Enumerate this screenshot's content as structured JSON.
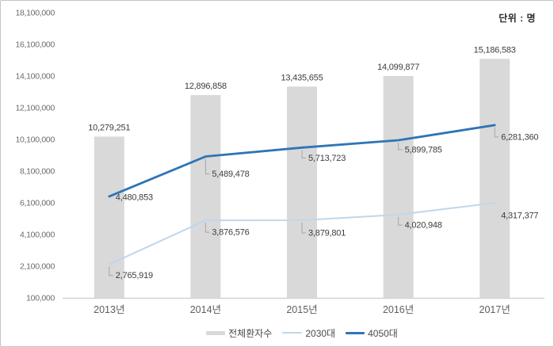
{
  "frame": {
    "unit_label": "단위 : 명"
  },
  "chart_data": {
    "type": "bar",
    "subtype": "combo-bar-line",
    "title": "",
    "xlabel": "",
    "ylabel": "",
    "unit_label": "단위 : 명",
    "categories": [
      "2013년",
      "2014년",
      "2015년",
      "2016년",
      "2017년"
    ],
    "series": [
      {
        "name": "전체환자수",
        "type": "bar",
        "color": "#d9d9d9",
        "values": [
          10279251,
          12896858,
          13435655,
          14099877,
          15186583
        ],
        "labels": [
          "10,279,251",
          "12,896,858",
          "13,435,655",
          "14,099,877",
          "15,186,583"
        ]
      },
      {
        "name": "2030대",
        "type": "line",
        "color": "#bdd7ee",
        "values": [
          2765919,
          3876576,
          3879801,
          4020948,
          4317377
        ],
        "labels": [
          "2,765,919",
          "3,876,576",
          "3,879,801",
          "4,020,948",
          "4,317,377"
        ]
      },
      {
        "name": "4050대",
        "type": "line",
        "color": "#2e75b6",
        "values": [
          4480853,
          5489478,
          5713723,
          5899785,
          6281360
        ],
        "labels": [
          "4,480,853",
          "5,489,478",
          "5,713,723",
          "5,899,785",
          "6,281,360"
        ]
      }
    ],
    "y_axis": {
      "min": 100000,
      "max": 18100000,
      "step": 2000000,
      "tick_labels": [
        "100,000",
        "2,100,000",
        "4,100,000",
        "6,100,000",
        "8,100,000",
        "10,100,000",
        "12,100,000",
        "14,100,000",
        "16,100,000",
        "18,100,000"
      ]
    },
    "gridlines": false,
    "legend_position": "bottom",
    "legend_entries": [
      "전체환자수",
      "2030대",
      "4050대"
    ],
    "axis_line_color": "#d2d2d2",
    "connector_color": "#a6a6a6"
  }
}
